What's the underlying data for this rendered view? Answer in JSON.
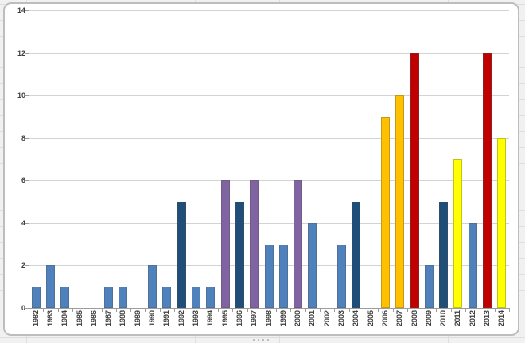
{
  "window": {
    "description_label": "embedded-spreadsheet-bar-chart"
  },
  "colors": {
    "light_blue": "#4F81BD",
    "dark_blue": "#1F4E79",
    "purple": "#8064A2",
    "orange": "#FFC000",
    "red": "#C00000",
    "yellow": "#FFFF00",
    "gridline": "#D3D3D3",
    "axis": "#9C9C9C",
    "tick_label": "#3F3F3F",
    "chart_border": "#BDBDBD",
    "chart_bg": "#FFFFFF",
    "sheet_bg": "#F1F1F1"
  },
  "chart_data": {
    "type": "bar",
    "title": "",
    "xlabel": "",
    "ylabel": "",
    "categories": [
      "1982",
      "1983",
      "1984",
      "1985",
      "1986",
      "1987",
      "1988",
      "1989",
      "1990",
      "1991",
      "1992",
      "1993",
      "1994",
      "1995",
      "1996",
      "1997",
      "1998",
      "1999",
      "2000",
      "2001",
      "2002",
      "2003",
      "2004",
      "2005",
      "2006",
      "2007",
      "2008",
      "2009",
      "2010",
      "2011",
      "2012",
      "2013",
      "2014"
    ],
    "values": [
      1,
      2,
      1,
      0,
      0,
      1,
      1,
      0,
      2,
      1,
      5,
      1,
      1,
      6,
      5,
      6,
      3,
      3,
      6,
      4,
      0,
      3,
      5,
      0,
      9,
      10,
      12,
      2,
      5,
      7,
      4,
      12,
      8
    ],
    "bar_color_keys": [
      "light_blue",
      "light_blue",
      "light_blue",
      "light_blue",
      "light_blue",
      "light_blue",
      "light_blue",
      "light_blue",
      "light_blue",
      "light_blue",
      "dark_blue",
      "light_blue",
      "light_blue",
      "purple",
      "dark_blue",
      "purple",
      "light_blue",
      "light_blue",
      "purple",
      "light_blue",
      "light_blue",
      "light_blue",
      "dark_blue",
      "light_blue",
      "orange",
      "orange",
      "red",
      "light_blue",
      "dark_blue",
      "yellow",
      "light_blue",
      "red",
      "yellow"
    ],
    "ylim": [
      0,
      14
    ],
    "yticks": [
      0,
      2,
      4,
      6,
      8,
      10,
      12,
      14
    ],
    "grid": true,
    "legend": "none",
    "x_label_rotation": -90
  }
}
